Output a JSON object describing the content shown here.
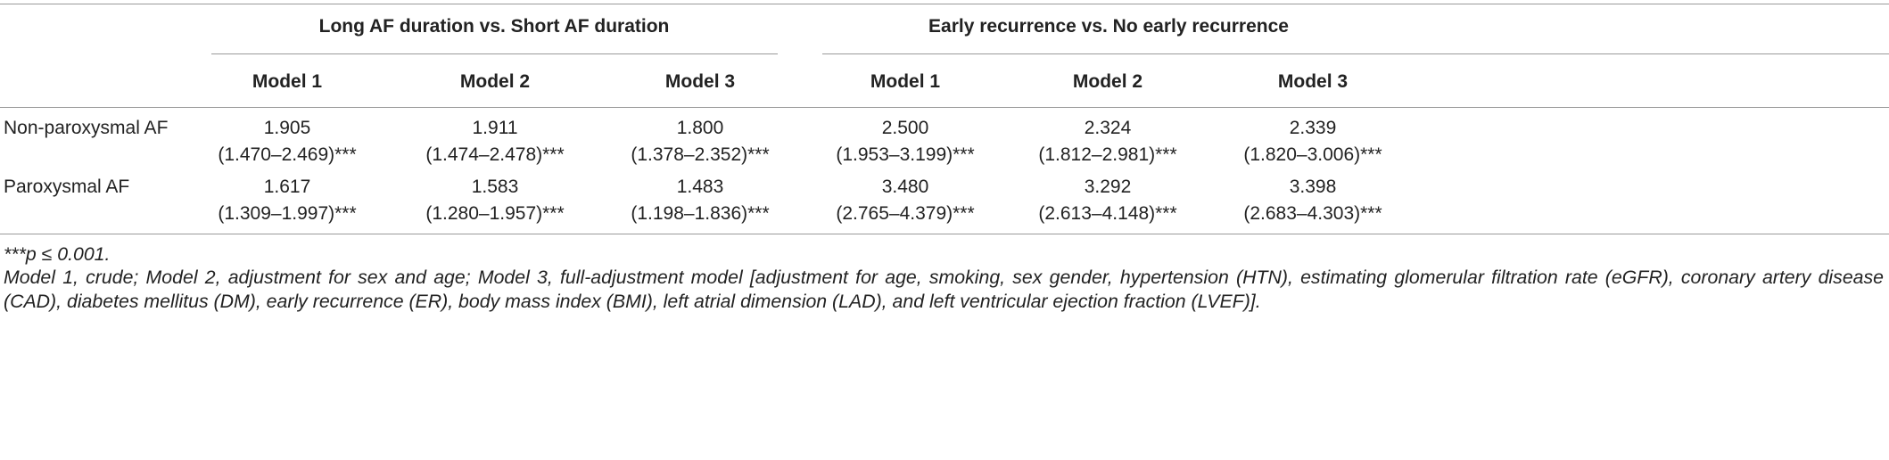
{
  "table": {
    "group_headers": [
      "Long AF duration vs. Short AF duration",
      "Early recurrence vs. No early recurrence"
    ],
    "column_headers": [
      "Model 1",
      "Model 2",
      "Model 3",
      "Model 1",
      "Model 2",
      "Model 3"
    ],
    "rows": [
      {
        "label": "Non-paroxysmal AF",
        "cells": [
          {
            "estimate": "1.905",
            "ci": "(1.470–2.469)***"
          },
          {
            "estimate": "1.911",
            "ci": "(1.474–2.478)***"
          },
          {
            "estimate": "1.800",
            "ci": "(1.378–2.352)***"
          },
          {
            "estimate": "2.500",
            "ci": "(1.953–3.199)***"
          },
          {
            "estimate": "2.324",
            "ci": "(1.812–2.981)***"
          },
          {
            "estimate": "2.339",
            "ci": "(1.820–3.006)***"
          }
        ]
      },
      {
        "label": "Paroxysmal AF",
        "cells": [
          {
            "estimate": "1.617",
            "ci": "(1.309–1.997)***"
          },
          {
            "estimate": "1.583",
            "ci": "(1.280–1.957)***"
          },
          {
            "estimate": "1.483",
            "ci": "(1.198–1.836)***"
          },
          {
            "estimate": "3.480",
            "ci": "(2.765–4.379)***"
          },
          {
            "estimate": "3.292",
            "ci": "(2.613–4.148)***"
          },
          {
            "estimate": "3.398",
            "ci": "(2.683–4.303)***"
          }
        ]
      }
    ]
  },
  "footnotes": [
    "***p ≤ 0.001.",
    "Model 1, crude; Model 2, adjustment for sex and age; Model 3, full-adjustment model [adjustment for age, smoking, sex gender, hypertension (HTN), estimating glomerular filtration rate (eGFR), coronary artery disease (CAD), diabetes mellitus (DM), early recurrence (ER), body mass index (BMI), left atrial dimension (LAD), and left ventricular ejection fraction (LVEF)]."
  ]
}
